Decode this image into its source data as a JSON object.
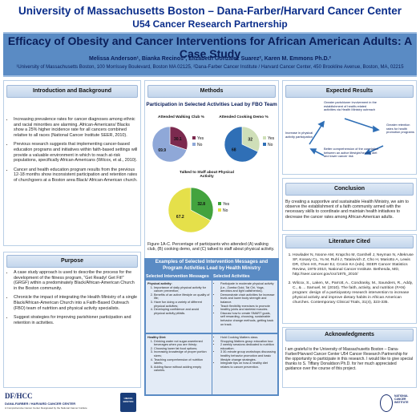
{
  "header": {
    "institution": "University of Massachusetts Boston – Dana-Farber/Harvard Cancer Center",
    "subtitle": "U54 Cancer Research Partnership",
    "title": "Efficacy of Obesity and Cancer Interventions for African American Adults: A Case Study",
    "authors": "Melissa Anderson¹, Bianka Recinos², Elizabeth Gonzalez Suarez², Karen M. Emmons Ph.D.²",
    "affiliations": "¹University of Massachusetts Boston, 100 Morrissey Boulevard, Boston MA 02125, ²Dana-Farber Cancer Institute / Harvard Cancer Center, 450 Brookline Avenue, Boston, MA, 02215"
  },
  "intro": {
    "heading": "Introduction and Background",
    "bullets": [
      "Increasing prevalence rates for cancer  diagnoses among ethnic and racial minorities are alarming. African-Americans/ Blacks show a 25% higher incidence rate for all cancers combined relative to all races (National Cancer Institute SEER, 2010).",
      "Previous research suggests that implementing cancer-based education programs and initiatives within faith-based settings will provide a valuable environment in which to reach at-risk populations, specifically African-Americans (Wilcox, et al., 2010).",
      "Cancer and health education program results from the previous 12-18 months show inconsistent participation and retention rates of churchgoers at a Boston area Black/ African-American church."
    ]
  },
  "purpose": {
    "heading": "Purpose",
    "bullets": [
      "A case study approach is used to describe the process for the development of the fitness program, “Get Ready! Get Fit!” (GRGF) within a predominately Black/African-American Church in the Boston community.",
      "Chronicle the impact of integrating the Health Ministry of a single Black/African-American Church into a Faith-Based Outreach (FBO) team of nutrition and physical activity specialists.",
      "Suggest strategies for improving parishioner participation and retention in activities."
    ]
  },
  "methods": {
    "heading": "Methods",
    "chart_section_title": "Participation in Selected Activities Lead by FBO Team",
    "caption": "Figure 1A-C. Percentage of participants who attended (A) walking club, (B) cooking demo, and (C) talked to staff about physical activity.",
    "table": {
      "title": "Examples of Selected Intervention Messages and Program Activities Lead by Health Ministry",
      "col1": "Selected Intervention Messages",
      "col2": "Selected Activities",
      "physical_label": "Physical activity:",
      "physical_messages": [
        "Importance of daily physical activity for cancer prevention;",
        "Benefits of an active lifestyle on quality of life;",
        "Have fun doing a variety of different physical activities;",
        "Developing confidence and avoid physical activity pitfalls."
      ],
      "physical_activities": [
        "Participate in moderate physical activity (i.e., Zumba Gold, Tai Chi, Yoga, aerobics and light calisthenics).",
        "Demonstrate chair activities for increase trunk and lower body strength and balance.",
        "Teach flexibility exercises to promote healthy joints and skeletal muscles.",
        "Discuss how to create SMART goals, self rewarding, choosing, sustainable behavior change methods, getting back on track."
      ],
      "diet_label": "Healthy Diet:",
      "diet_messages": [
        "Drinking water not sugar-sweetened beverages when you are thirsty;",
        "Choosing lower fat food options;",
        "Increasing knowledge of proper portion sizes;",
        "Teaching comprehension of nutrition labels;",
        "Adding flavor without adding empty calories."
      ],
      "diet_activities": [
        "Hold Cooking Matters class.",
        "Shopping Matters group education tour.",
        "2 weekly sessions dedicated to nutrition education.",
        "3 30-minute group workshops discussing healthy behavior promotion and basic lifestyle change strategies.",
        "Integrate tips on how a healthy diet relates to cancer prevention."
      ]
    }
  },
  "chart_data": [
    {
      "type": "pie",
      "title": "Attended Walking Club %",
      "labels": [
        "Yes",
        "No"
      ],
      "values": [
        30.1,
        69.9
      ],
      "colors": [
        "#7c2a4f",
        "#8fa8d8"
      ]
    },
    {
      "type": "pie",
      "title": "Attended Cooking Demo %",
      "labels": [
        "Yes",
        "No"
      ],
      "values": [
        32,
        68
      ],
      "colors": [
        "#cfdfb8",
        "#2f6fb6"
      ]
    },
    {
      "type": "pie",
      "title": "Talked to Staff about Physical Activity",
      "labels": [
        "Yes",
        "No"
      ],
      "values": [
        32.8,
        67.2
      ],
      "colors": [
        "#43a33e",
        "#e5e04a"
      ]
    }
  ],
  "expected": {
    "heading": "Expected Results",
    "nodes": [
      "Greater parishioner involvement in the establishment of health-related activities via Health Ministry outreach",
      "Increase in physical activity participation",
      "Greater retention rates for health promotion programs",
      "Better comprehension of the correlation between an active lifestyle/healthy diet and lower cancer risk"
    ]
  },
  "conclusion": {
    "heading": "Conclusion",
    "text": "By creating a supportive and sustainable Health Ministry, we aim to observe the establishment of a faith community armed with the necessary skills to coordinate and maintain health initiatives to decrease the cancer rates among African-American adults."
  },
  "literature": {
    "heading": "Literature Cited",
    "refs": [
      "Howlader N, Noone AM, Krapcho M, Garshell J, Neyman N, Altekruse SF, Kosary CL, Yu M, Ruhl J, Tatalovich Z, Cho H, Mariotto A, Lewis DR, Chen HS, Feuer EJ, Cronin KA (eds). SEER Cancer Statistics Review, 1975-2010, National Cancer Institute. Bethesda, MD, http://seer.cancer.gov/csr/1975_2010/",
      "Wilcox, S., Laken, M., Parrott, A., Condrasky, M., Saunders, R., Addy, C., & ... Samuel, M. (2010). The faith, activity, and nutrition (FAN) program: design of a participatory research intervention to increase physical activity and improve dietary habits in African American churches. Contemporary Clinical Trials, 31(4), 323-335."
    ]
  },
  "ack": {
    "heading": "Acknowledgments",
    "text": "I am grateful to the University of Massachusetts Boston – Dana-Farber/Harvard Cancer Center U54 Cancer Research Partnership for the opportunity to participate in this research. I would like to give special thanks to S. Tiffany Donaldson Ph.D. for her much appreciated guidance over the course of this project."
  },
  "logos": {
    "dfhcc": "DF/HCC",
    "dfhcc_name": "DANA-FARBER / HARVARD CANCER CENTER",
    "dfhcc_tag": "A Comprehensive Cancer Center Designated by the National Cancer Institute",
    "umass": "UMASS BOSTON",
    "nci": "NATIONAL CANCER INSTITUTE"
  }
}
